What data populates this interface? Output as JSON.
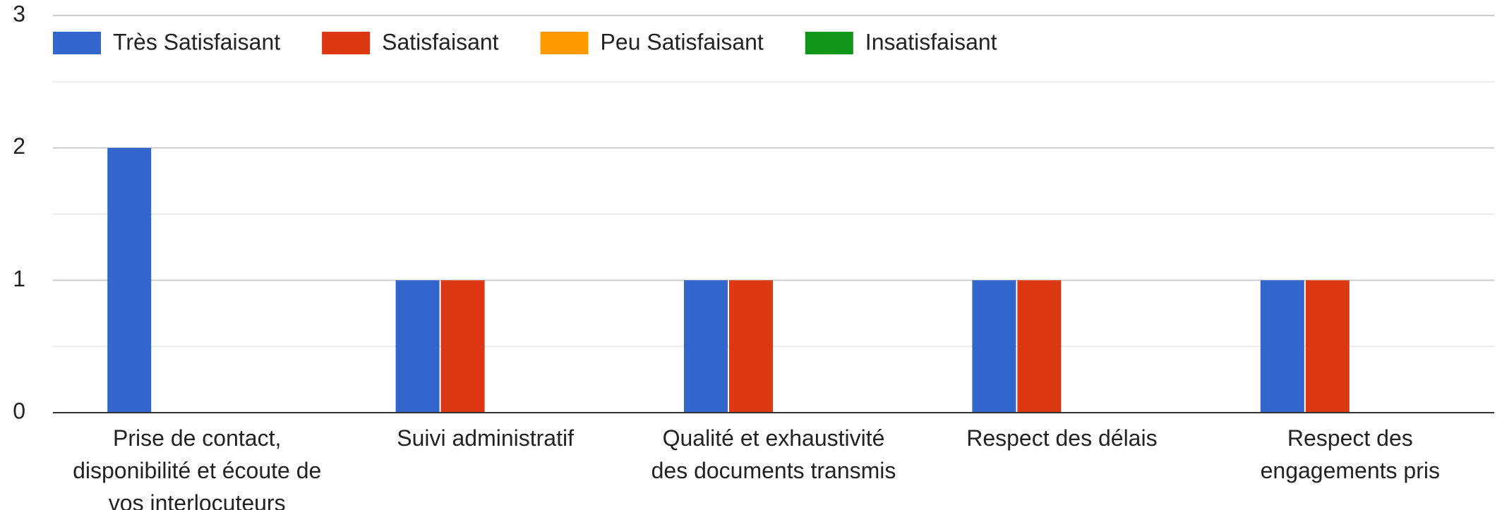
{
  "chart_data": {
    "type": "bar",
    "categories": [
      "Prise de contact, disponibilité et écoute de vos interlocuteurs",
      "Suivi administratif",
      "Qualité et exhaustivité des documents transmis",
      "Respect des délais",
      "Respect des engagements pris"
    ],
    "series": [
      {
        "name": "Très Satisfaisant",
        "color": "#3366cc",
        "values": [
          2,
          1,
          1,
          1,
          1
        ]
      },
      {
        "name": "Satisfaisant",
        "color": "#dc3912",
        "values": [
          0,
          1,
          1,
          1,
          1
        ]
      },
      {
        "name": "Peu Satisfaisant",
        "color": "#ff9900",
        "values": [
          0,
          0,
          0,
          0,
          0
        ]
      },
      {
        "name": "Insatisfaisant",
        "color": "#109618",
        "values": [
          0,
          0,
          0,
          0,
          0
        ]
      }
    ],
    "ylim": [
      0,
      3
    ],
    "yticks": [
      0,
      1,
      2,
      3
    ],
    "yminorticks": [
      0.5,
      1.5,
      2.5
    ],
    "grid": true,
    "legend": "top"
  }
}
